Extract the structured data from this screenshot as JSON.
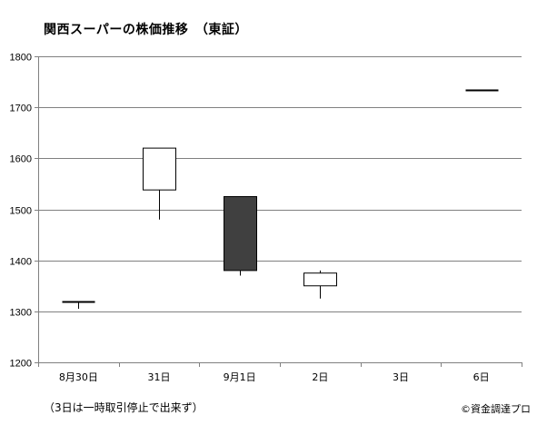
{
  "chart_data": {
    "type": "candlestick",
    "title": "関西スーパーの株価推移　（東証）",
    "categories": [
      "8月30日",
      "31日",
      "9月1日",
      "2日",
      "3日",
      "6日"
    ],
    "ohlc": [
      {
        "open": 1320,
        "high": 1320,
        "low": 1305,
        "close": 1320
      },
      {
        "open": 1538,
        "high": 1620,
        "low": 1480,
        "close": 1620
      },
      {
        "open": 1525,
        "high": 1525,
        "low": 1370,
        "close": 1380
      },
      {
        "open": 1350,
        "high": 1380,
        "low": 1325,
        "close": 1375
      },
      null,
      {
        "open": 1735,
        "high": 1735,
        "low": 1735,
        "close": 1735
      }
    ],
    "ylim": [
      1200,
      1800
    ],
    "yticks": [
      1200,
      1300,
      1400,
      1500,
      1600,
      1700,
      1800
    ],
    "grid": true,
    "colors": {
      "down_body": "#404040",
      "up_body": "#ffffff",
      "outline": "#000000",
      "grid": "#808080"
    }
  },
  "footnote": "（3日は一時取引停止で出来ず）",
  "credit": "©資金調達プロ"
}
